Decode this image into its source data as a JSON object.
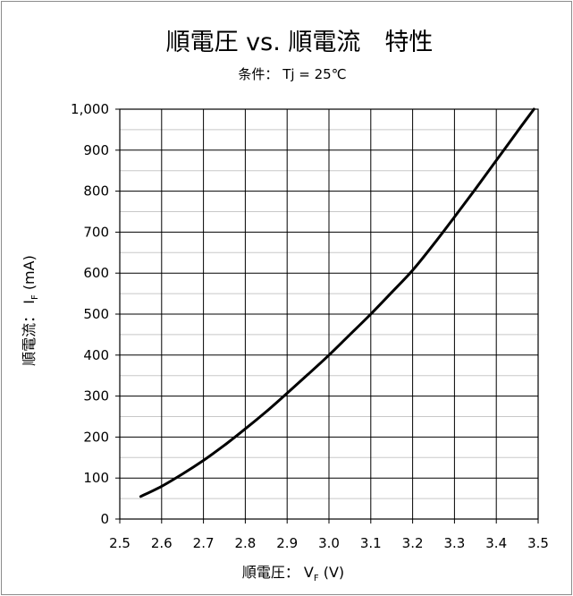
{
  "chart_data": {
    "type": "line",
    "title": "順電圧 vs. 順電流　特性",
    "subtitle": "条件： Tj = 25℃",
    "xlabel": {
      "prefix": "順電圧：  V",
      "sub": "F",
      "suffix": " (V)"
    },
    "ylabel": {
      "prefix": "順電流：  I",
      "sub": "F",
      "suffix": "  (mA)"
    },
    "xlim": [
      2.5,
      3.5
    ],
    "ylim": [
      0,
      1000
    ],
    "x_ticks": [
      "2.5",
      "2.6",
      "2.7",
      "2.8",
      "2.9",
      "3.0",
      "3.1",
      "3.2",
      "3.3",
      "3.4",
      "3.5"
    ],
    "y_ticks": [
      "0",
      "100",
      "200",
      "300",
      "400",
      "500",
      "600",
      "700",
      "800",
      "900",
      "1,000"
    ],
    "grid": true,
    "series": [
      {
        "color": "#000000",
        "x": [
          2.55,
          2.6,
          2.65,
          2.7,
          2.75,
          2.8,
          2.85,
          2.9,
          2.95,
          3.0,
          3.05,
          3.1,
          3.15,
          3.2,
          3.25,
          3.3,
          3.35,
          3.4,
          3.45,
          3.49
        ],
        "y": [
          55,
          80,
          110,
          143,
          180,
          220,
          262,
          307,
          353,
          400,
          450,
          500,
          553,
          607,
          670,
          737,
          805,
          875,
          945,
          1000
        ]
      }
    ]
  }
}
